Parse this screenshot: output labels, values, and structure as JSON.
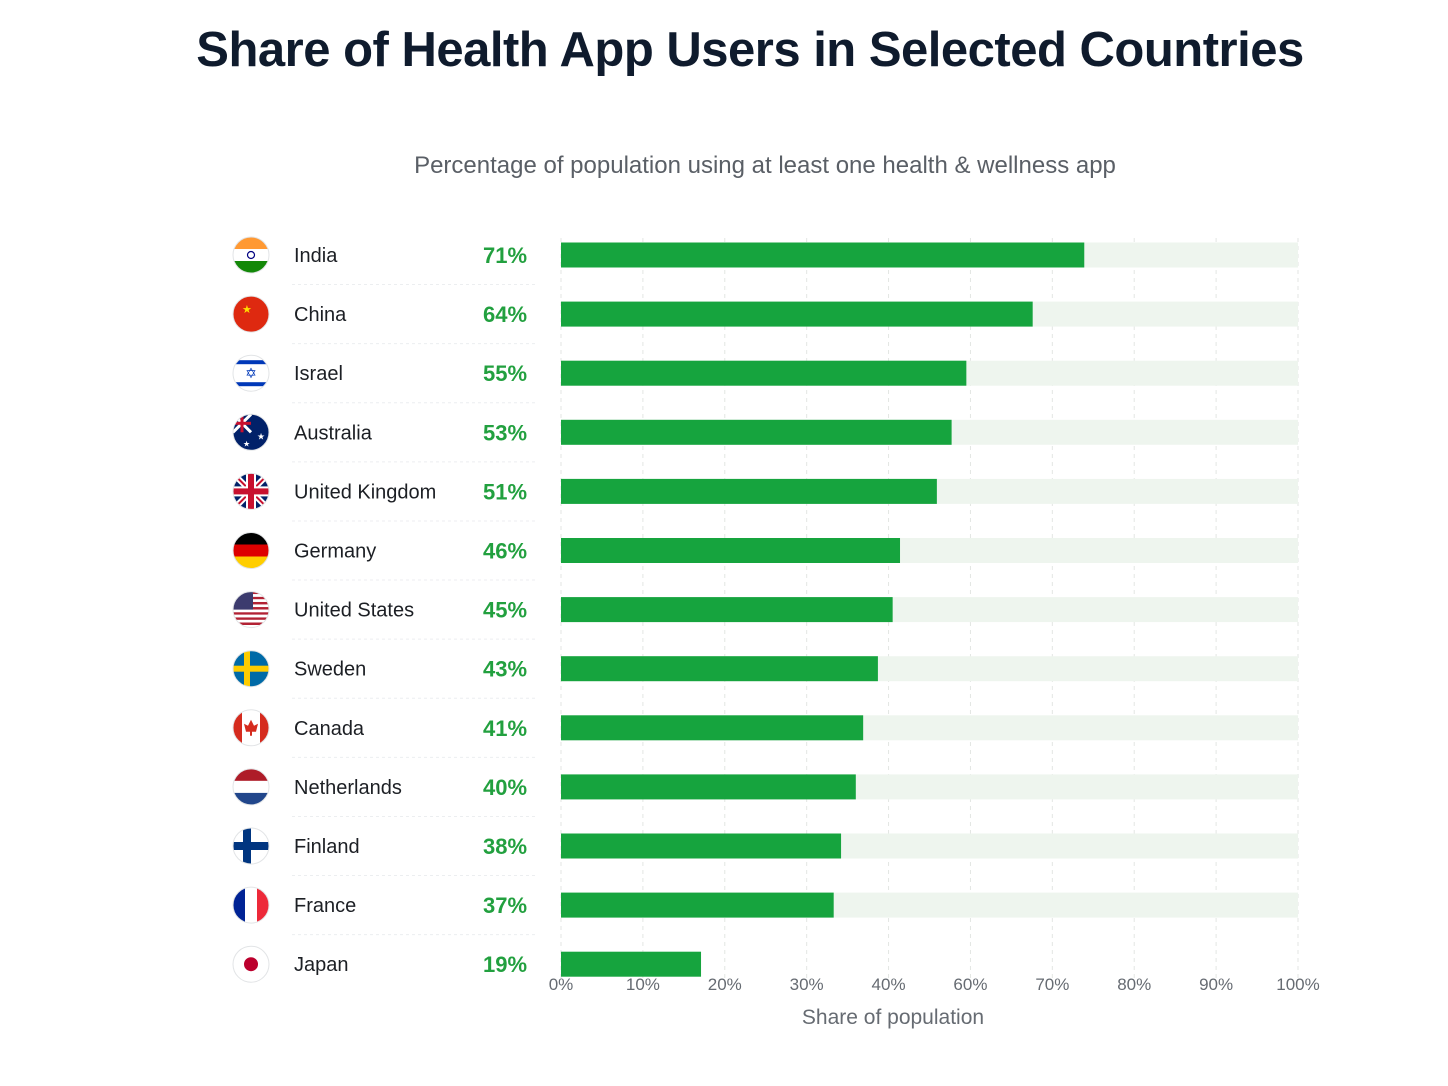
{
  "header": {
    "title": "Share of Health App Users in Selected Countries",
    "subtitle": "Percentage of population using at least one health & wellness app"
  },
  "colors": {
    "bar": "#16a43e",
    "track": "#eef5ee",
    "label_pct": "#22a03f"
  },
  "chart_data": {
    "type": "bar",
    "orientation": "horizontal",
    "title": "Share of Health App Users in Selected Countries",
    "subtitle": "Percentage of population using at least one health & wellness app",
    "xlabel": "Share of population",
    "ylabel": "",
    "xlim": [
      0,
      100
    ],
    "grid": true,
    "categories": [
      "India",
      "China",
      "Israel",
      "Australia",
      "United Kingdom",
      "Germany",
      "United States",
      "Sweden",
      "Canada",
      "Netherlands",
      "Finland",
      "France",
      "Japan"
    ],
    "values": [
      71,
      64,
      55,
      53,
      51,
      46,
      45,
      43,
      41,
      40,
      38,
      37,
      19
    ],
    "value_labels": [
      "71%",
      "64%",
      "55%",
      "53%",
      "51%",
      "46%",
      "45%",
      "43%",
      "41%",
      "40%",
      "38%",
      "37%",
      "19%"
    ],
    "flag_icons": [
      "flag-india-icon",
      "flag-china-icon",
      "flag-israel-icon",
      "flag-australia-icon",
      "flag-united-kingdom-icon",
      "flag-germany-icon",
      "flag-united-states-icon",
      "flag-sweden-icon",
      "flag-canada-icon",
      "flag-netherlands-icon",
      "flag-finland-icon",
      "flag-france-icon",
      "flag-japan-icon"
    ],
    "x_ticks": [
      "0%",
      "10%",
      "20%",
      "30%",
      "40%",
      "60%",
      "70%",
      "80%",
      "90%",
      "100%"
    ]
  }
}
